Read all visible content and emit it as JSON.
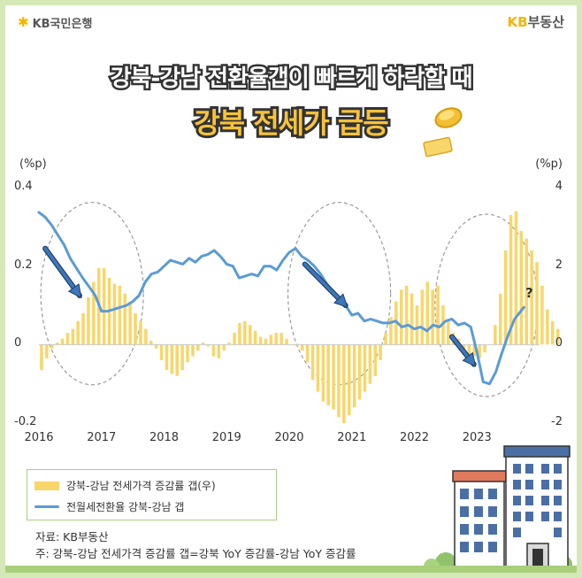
{
  "header": {
    "bank_logo": "KB국민은행",
    "brand_kb": "KB",
    "brand_name": "부동산"
  },
  "title": {
    "line1": "강북-강남 전환율갭이 빠르게 하락할 때",
    "line2": "강북 전세가 급등"
  },
  "colors": {
    "bar": "#f8d66a",
    "line": "#5b9bd5",
    "arrow": "#3e78b8",
    "ellipse": "#9a9a9a",
    "accent": "#f5b400"
  },
  "chart_data": {
    "type": "bar+line",
    "xlabel": "",
    "left_unit": "(%p)",
    "right_unit": "(%p)",
    "left_ylim": [
      -0.2,
      0.4
    ],
    "right_ylim": [
      -2,
      4
    ],
    "left_ticks": [
      "0.4",
      "0.2",
      "0",
      "-0.2"
    ],
    "right_ticks": [
      "4",
      "2",
      "0",
      "-2"
    ],
    "year_labels": [
      "2016",
      "2017",
      "2018",
      "2019",
      "2020",
      "2021",
      "2022",
      "2023"
    ],
    "question_mark": "?",
    "series": [
      {
        "name": "강북-강남 전세가격 증감률 갭(우)",
        "type": "bar",
        "axis": "right",
        "start": "2016-01",
        "values": [
          -0.65,
          -0.35,
          -0.1,
          0.05,
          0.15,
          0.3,
          0.4,
          0.6,
          0.8,
          1.2,
          1.6,
          1.95,
          1.95,
          1.7,
          1.55,
          1.5,
          1.3,
          1.1,
          0.8,
          0.6,
          0.4,
          0.1,
          -0.1,
          -0.4,
          -0.65,
          -0.75,
          -0.8,
          -0.65,
          -0.45,
          -0.3,
          -0.15,
          0.05,
          -0.05,
          -0.3,
          -0.35,
          -0.15,
          0.05,
          0.3,
          0.55,
          0.6,
          0.5,
          0.35,
          0.2,
          0.15,
          0.25,
          0.3,
          0.3,
          0.15,
          0.0,
          -0.05,
          -0.15,
          -0.45,
          -0.9,
          -1.2,
          -1.45,
          -1.55,
          -1.65,
          -1.85,
          -2.0,
          -1.8,
          -1.6,
          -1.4,
          -1.2,
          -1.0,
          -0.8,
          -0.4,
          0.3,
          0.7,
          1.1,
          1.4,
          1.5,
          1.3,
          1.0,
          1.4,
          1.6,
          1.4,
          1.5,
          1.0,
          0.6,
          0.3,
          0.15,
          -0.1,
          -0.25,
          -0.3,
          -0.35,
          -0.2,
          0.0,
          0.5,
          1.3,
          2.4,
          3.3,
          3.4,
          2.9,
          2.7,
          2.4,
          2.1,
          1.5,
          0.9,
          0.6,
          0.4
        ]
      },
      {
        "name": "전월세전환율 강북-강남 갭",
        "type": "line",
        "axis": "left",
        "points": [
          [
            2016.0,
            0.337
          ],
          [
            2016.1,
            0.325
          ],
          [
            2016.2,
            0.305
          ],
          [
            2016.3,
            0.28
          ],
          [
            2016.4,
            0.255
          ],
          [
            2016.5,
            0.22
          ],
          [
            2016.6,
            0.195
          ],
          [
            2016.7,
            0.17
          ],
          [
            2016.8,
            0.148
          ],
          [
            2016.9,
            0.125
          ],
          [
            2017.0,
            0.085
          ],
          [
            2017.1,
            0.085
          ],
          [
            2017.2,
            0.09
          ],
          [
            2017.3,
            0.095
          ],
          [
            2017.4,
            0.1
          ],
          [
            2017.5,
            0.11
          ],
          [
            2017.6,
            0.125
          ],
          [
            2017.7,
            0.16
          ],
          [
            2017.8,
            0.18
          ],
          [
            2017.9,
            0.185
          ],
          [
            2018.0,
            0.2
          ],
          [
            2018.1,
            0.215
          ],
          [
            2018.2,
            0.21
          ],
          [
            2018.3,
            0.205
          ],
          [
            2018.4,
            0.22
          ],
          [
            2018.5,
            0.21
          ],
          [
            2018.6,
            0.225
          ],
          [
            2018.7,
            0.23
          ],
          [
            2018.8,
            0.24
          ],
          [
            2018.9,
            0.225
          ],
          [
            2019.0,
            0.205
          ],
          [
            2019.1,
            0.2
          ],
          [
            2019.2,
            0.17
          ],
          [
            2019.3,
            0.175
          ],
          [
            2019.4,
            0.18
          ],
          [
            2019.5,
            0.175
          ],
          [
            2019.6,
            0.2
          ],
          [
            2019.7,
            0.2
          ],
          [
            2019.8,
            0.19
          ],
          [
            2019.9,
            0.215
          ],
          [
            2020.0,
            0.235
          ],
          [
            2020.1,
            0.245
          ],
          [
            2020.2,
            0.225
          ],
          [
            2020.3,
            0.215
          ],
          [
            2020.4,
            0.2
          ],
          [
            2020.5,
            0.18
          ],
          [
            2020.6,
            0.155
          ],
          [
            2020.7,
            0.135
          ],
          [
            2020.8,
            0.115
          ],
          [
            2020.9,
            0.1
          ],
          [
            2021.0,
            0.075
          ],
          [
            2021.1,
            0.08
          ],
          [
            2021.2,
            0.06
          ],
          [
            2021.3,
            0.065
          ],
          [
            2021.4,
            0.06
          ],
          [
            2021.5,
            0.055
          ],
          [
            2021.6,
            0.055
          ],
          [
            2021.7,
            0.06
          ],
          [
            2021.8,
            0.045
          ],
          [
            2021.9,
            0.05
          ],
          [
            2022.0,
            0.04
          ],
          [
            2022.1,
            0.045
          ],
          [
            2022.2,
            0.035
          ],
          [
            2022.3,
            0.05
          ],
          [
            2022.4,
            0.045
          ],
          [
            2022.5,
            0.06
          ],
          [
            2022.6,
            0.065
          ],
          [
            2022.7,
            0.05
          ],
          [
            2022.8,
            0.055
          ],
          [
            2022.9,
            0.045
          ],
          [
            2023.0,
            -0.02
          ],
          [
            2023.1,
            -0.095
          ],
          [
            2023.2,
            -0.1
          ],
          [
            2023.3,
            -0.07
          ],
          [
            2023.4,
            -0.02
          ],
          [
            2023.5,
            0.025
          ],
          [
            2023.6,
            0.065
          ],
          [
            2023.7,
            0.085
          ],
          [
            2023.75,
            0.095
          ]
        ]
      }
    ]
  },
  "legend": {
    "bar_label": "강북-강남 전세가격 증감률 갭(우)",
    "line_label": "전월세전환율 강북-강남 갭"
  },
  "source": {
    "line1": "자료: KB부동산",
    "line2": "주: 강북-강남 전세가격 증감률 갭=강북 YoY 증감률-강남 YoY 증감률"
  }
}
